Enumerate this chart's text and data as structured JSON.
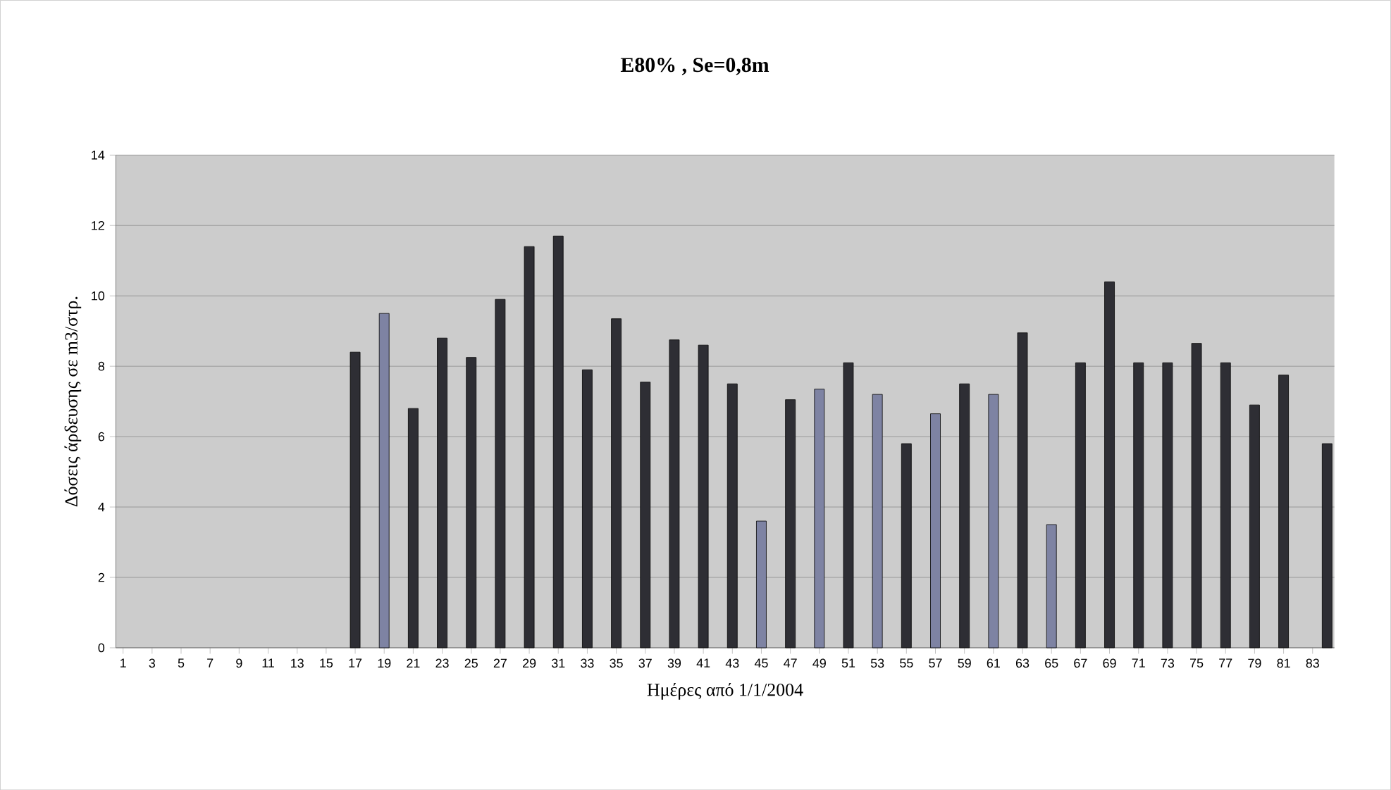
{
  "chart_data": {
    "type": "bar",
    "title": "E80% ,   Se=0,8m",
    "xlabel": "Ημέρες από 1/1/2004",
    "ylabel": "Δόσεις άρδευσης σε m3/στρ.",
    "categories": [
      "1",
      null,
      "3",
      null,
      "5",
      null,
      "7",
      null,
      "9",
      null,
      "11",
      null,
      "13",
      null,
      "15",
      null,
      "17",
      null,
      "19",
      null,
      "21",
      null,
      "23",
      null,
      "25",
      null,
      "27",
      null,
      "29",
      null,
      "31",
      null,
      "33",
      null,
      "35",
      null,
      "37",
      null,
      "39",
      null,
      "41",
      null,
      "43",
      null,
      "45",
      null,
      "47",
      null,
      "49",
      null,
      "51",
      null,
      "53",
      null,
      "55",
      null,
      "57",
      null,
      "59",
      null,
      "61",
      null,
      "63",
      null,
      "65",
      null,
      "67",
      null,
      "69",
      null,
      "71",
      null,
      "73",
      null,
      "75",
      null,
      "77",
      null,
      "79",
      null,
      "81",
      null,
      "83",
      null
    ],
    "values": [
      0,
      0,
      0,
      0,
      0,
      0,
      0,
      0,
      0,
      0,
      0,
      0,
      0,
      0,
      0,
      0,
      8.4,
      0,
      9.5,
      0,
      6.8,
      0,
      8.8,
      0,
      8.25,
      0,
      9.9,
      0,
      11.4,
      0,
      11.7,
      0,
      7.9,
      0,
      9.35,
      0,
      7.55,
      0,
      8.75,
      0,
      8.6,
      0,
      7.5,
      0,
      3.6,
      0,
      7.05,
      0,
      7.35,
      0,
      8.1,
      0,
      7.2,
      0,
      5.8,
      0,
      6.65,
      0,
      7.5,
      0,
      7.2,
      0,
      8.95,
      0,
      3.5,
      0,
      8.1,
      0,
      10.4,
      0,
      8.1,
      0,
      8.1,
      0,
      8.65,
      0,
      8.1,
      0,
      6.9,
      0,
      7.75,
      0,
      0,
      5.8
    ],
    "colors": [
      "#2e2e34",
      "#2e2e34",
      "#2e2e34",
      "#2e2e34",
      "#2e2e34",
      "#2e2e34",
      "#2e2e34",
      "#2e2e34",
      "#2e2e34",
      "#2e2e34",
      "#2e2e34",
      "#2e2e34",
      "#2e2e34",
      "#2e2e34",
      "#2e2e34",
      "#2e2e34",
      "#2e2e34",
      "#2e2e34",
      "#7e83a3",
      "#2e2e34",
      "#2e2e34",
      "#2e2e34",
      "#2e2e34",
      "#2e2e34",
      "#2e2e34",
      "#2e2e34",
      "#2e2e34",
      "#2e2e34",
      "#2e2e34",
      "#2e2e34",
      "#2e2e34",
      "#2e2e34",
      "#2e2e34",
      "#2e2e34",
      "#2e2e34",
      "#2e2e34",
      "#2e2e34",
      "#2e2e34",
      "#2e2e34",
      "#2e2e34",
      "#2e2e34",
      "#2e2e34",
      "#2e2e34",
      "#2e2e34",
      "#7e83a3",
      "#2e2e34",
      "#2e2e34",
      "#2e2e34",
      "#7e83a3",
      "#2e2e34",
      "#2e2e34",
      "#2e2e34",
      "#7e83a3",
      "#2e2e34",
      "#2e2e34",
      "#2e2e34",
      "#7e83a3",
      "#2e2e34",
      "#2e2e34",
      "#2e2e34",
      "#7e83a3",
      "#2e2e34",
      "#2e2e34",
      "#2e2e34",
      "#7e83a3",
      "#2e2e34",
      "#2e2e34",
      "#2e2e34",
      "#2e2e34",
      "#2e2e34",
      "#2e2e34",
      "#2e2e34",
      "#2e2e34",
      "#2e2e34",
      "#2e2e34",
      "#2e2e34",
      "#2e2e34",
      "#2e2e34",
      "#2e2e34",
      "#2e2e34",
      "#2e2e34",
      "#2e2e34",
      "#2e2e34",
      "#2e2e34"
    ],
    "ylim": [
      0,
      14
    ],
    "yticks": [
      0,
      2,
      4,
      6,
      8,
      10,
      12,
      14
    ],
    "grid": "y"
  }
}
